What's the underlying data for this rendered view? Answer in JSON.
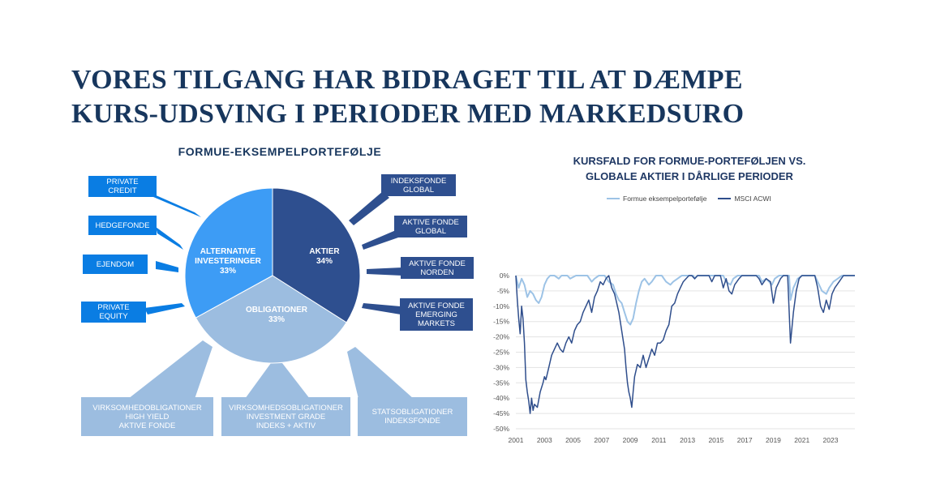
{
  "title": {
    "line1": "VORES TILGANG HAR BIDRAGET TIL AT DÆMPE",
    "line2": "KURS-UDSVING I PERIODER MED MARKEDSURO"
  },
  "pie": {
    "title": "FORMUE-EKSEMPELPORTEFØLJE",
    "segments": [
      {
        "name": "AKTIER",
        "pct": "34%",
        "value": 34,
        "color": "#2e4f8f"
      },
      {
        "name": "OBLIGATIONER",
        "pct": "33%",
        "value": 33,
        "color": "#9cbde0"
      },
      {
        "name": "ALTERNATIVE\nINVESTERINGER",
        "pct": "33%",
        "value": 33,
        "color": "#3d9cf5"
      }
    ],
    "alt_boxes": [
      "PRIVATE\nCREDIT",
      "HEDGEFONDE",
      "EJENDOM",
      "PRIVATE\nEQUITY"
    ],
    "aktier_boxes": [
      "INDEKSFONDE\nGLOBAL",
      "AKTIVE FONDE\nGLOBAL",
      "AKTIVE FONDE\nNORDEN",
      "AKTIVE FONDE\nEMERGING\nMARKETS"
    ],
    "oblig_boxes": [
      "VIRKSOMHEDOBLIGATIONER\nHIGH YIELD\nAKTIVE FONDE",
      "VIRKSOMHEDSOBLIGATIONER\nINVESTMENT GRADE\nINDEKS + AKTIV",
      "STATSOBLIGATIONER\nINDEKSFONDE"
    ]
  },
  "chart_data": {
    "type": "line",
    "title": "KURSFALD FOR FORMUE-PORTEFØLJEN VS.\nGLOBALE AKTIER I DÅRLIGE PERIODER",
    "xlabel": "",
    "ylabel": "",
    "xlim": [
      2001,
      2024.7
    ],
    "ylim": [
      -50,
      0
    ],
    "x_ticks": [
      "2001",
      "2003",
      "2005",
      "2007",
      "2009",
      "2011",
      "2013",
      "2015",
      "2017",
      "2019",
      "2021",
      "2023"
    ],
    "y_ticks": [
      "0%",
      "-5%",
      "-10%",
      "-15%",
      "-20%",
      "-25%",
      "-30%",
      "-35%",
      "-40%",
      "-45%",
      "-50%"
    ],
    "grid": "horizontal",
    "legend_position": "top",
    "series": [
      {
        "name": "Formue eksempelportefølje",
        "color": "#9dc3e6",
        "points": [
          [
            2001.0,
            0
          ],
          [
            2001.2,
            -4
          ],
          [
            2001.4,
            -1
          ],
          [
            2001.6,
            -3
          ],
          [
            2001.8,
            -7
          ],
          [
            2002.0,
            -5
          ],
          [
            2002.2,
            -6
          ],
          [
            2002.4,
            -8
          ],
          [
            2002.6,
            -9
          ],
          [
            2002.8,
            -7
          ],
          [
            2003.0,
            -3
          ],
          [
            2003.2,
            -1
          ],
          [
            2003.4,
            0
          ],
          [
            2003.7,
            0
          ],
          [
            2004.0,
            -1
          ],
          [
            2004.2,
            0
          ],
          [
            2004.6,
            0
          ],
          [
            2004.8,
            -1
          ],
          [
            2005.2,
            0
          ],
          [
            2006.0,
            0
          ],
          [
            2006.3,
            -2
          ],
          [
            2006.5,
            -1
          ],
          [
            2006.8,
            0
          ],
          [
            2007.2,
            0
          ],
          [
            2007.5,
            -2
          ],
          [
            2007.8,
            -3
          ],
          [
            2008.0,
            -6
          ],
          [
            2008.2,
            -8
          ],
          [
            2008.4,
            -9
          ],
          [
            2008.6,
            -12
          ],
          [
            2008.8,
            -15
          ],
          [
            2009.0,
            -16
          ],
          [
            2009.2,
            -14
          ],
          [
            2009.4,
            -9
          ],
          [
            2009.6,
            -5
          ],
          [
            2009.8,
            -2
          ],
          [
            2010.0,
            -1
          ],
          [
            2010.3,
            -3
          ],
          [
            2010.5,
            -2
          ],
          [
            2010.8,
            0
          ],
          [
            2011.2,
            0
          ],
          [
            2011.5,
            -2
          ],
          [
            2011.8,
            -3
          ],
          [
            2012.0,
            -2
          ],
          [
            2012.3,
            -1
          ],
          [
            2012.6,
            0
          ],
          [
            2013.4,
            0
          ],
          [
            2013.5,
            -1
          ],
          [
            2013.7,
            0
          ],
          [
            2015.5,
            0
          ],
          [
            2015.7,
            -2
          ],
          [
            2016.0,
            -3
          ],
          [
            2016.2,
            -1
          ],
          [
            2016.5,
            0
          ],
          [
            2018.0,
            0
          ],
          [
            2018.2,
            -2
          ],
          [
            2018.5,
            -1
          ],
          [
            2018.9,
            -3
          ],
          [
            2019.1,
            -1
          ],
          [
            2019.4,
            0
          ],
          [
            2020.1,
            0
          ],
          [
            2020.2,
            -8
          ],
          [
            2020.4,
            -4
          ],
          [
            2020.7,
            -1
          ],
          [
            2021.0,
            0
          ],
          [
            2021.9,
            0
          ],
          [
            2022.1,
            -2
          ],
          [
            2022.4,
            -5
          ],
          [
            2022.7,
            -6
          ],
          [
            2022.9,
            -4
          ],
          [
            2023.2,
            -2
          ],
          [
            2023.5,
            -1
          ],
          [
            2023.8,
            0
          ],
          [
            2024.7,
            0
          ]
        ]
      },
      {
        "name": "MSCI ACWI",
        "color": "#2f4e8c",
        "points": [
          [
            2001.0,
            0
          ],
          [
            2001.1,
            -8
          ],
          [
            2001.2,
            -14
          ],
          [
            2001.3,
            -19
          ],
          [
            2001.4,
            -10
          ],
          [
            2001.5,
            -14
          ],
          [
            2001.6,
            -22
          ],
          [
            2001.7,
            -34
          ],
          [
            2001.8,
            -38
          ],
          [
            2001.9,
            -41
          ],
          [
            2002.0,
            -45
          ],
          [
            2002.1,
            -40
          ],
          [
            2002.2,
            -44
          ],
          [
            2002.3,
            -42
          ],
          [
            2002.5,
            -43
          ],
          [
            2002.7,
            -38
          ],
          [
            2002.9,
            -35
          ],
          [
            2003.0,
            -33
          ],
          [
            2003.1,
            -34
          ],
          [
            2003.3,
            -30
          ],
          [
            2003.5,
            -26
          ],
          [
            2003.7,
            -24
          ],
          [
            2003.9,
            -22
          ],
          [
            2004.1,
            -24
          ],
          [
            2004.3,
            -25
          ],
          [
            2004.5,
            -22
          ],
          [
            2004.7,
            -20
          ],
          [
            2004.9,
            -22
          ],
          [
            2005.1,
            -18
          ],
          [
            2005.3,
            -16
          ],
          [
            2005.5,
            -15
          ],
          [
            2005.7,
            -12
          ],
          [
            2005.9,
            -10
          ],
          [
            2006.1,
            -8
          ],
          [
            2006.3,
            -12
          ],
          [
            2006.5,
            -7
          ],
          [
            2006.7,
            -5
          ],
          [
            2006.9,
            -2
          ],
          [
            2007.1,
            -3
          ],
          [
            2007.3,
            -1
          ],
          [
            2007.5,
            0
          ],
          [
            2007.7,
            -4
          ],
          [
            2007.9,
            -6
          ],
          [
            2008.0,
            -8
          ],
          [
            2008.2,
            -12
          ],
          [
            2008.4,
            -18
          ],
          [
            2008.6,
            -24
          ],
          [
            2008.7,
            -30
          ],
          [
            2008.8,
            -35
          ],
          [
            2008.9,
            -38
          ],
          [
            2009.0,
            -40
          ],
          [
            2009.1,
            -43
          ],
          [
            2009.2,
            -38
          ],
          [
            2009.3,
            -33
          ],
          [
            2009.5,
            -29
          ],
          [
            2009.7,
            -30
          ],
          [
            2009.9,
            -26
          ],
          [
            2010.1,
            -30
          ],
          [
            2010.3,
            -27
          ],
          [
            2010.5,
            -24
          ],
          [
            2010.7,
            -26
          ],
          [
            2010.9,
            -22
          ],
          [
            2011.1,
            -22
          ],
          [
            2011.3,
            -21
          ],
          [
            2011.5,
            -18
          ],
          [
            2011.7,
            -16
          ],
          [
            2011.9,
            -10
          ],
          [
            2012.1,
            -9
          ],
          [
            2012.3,
            -6
          ],
          [
            2012.5,
            -4
          ],
          [
            2012.7,
            -2
          ],
          [
            2012.9,
            -1
          ],
          [
            2013.1,
            0
          ],
          [
            2013.3,
            0
          ],
          [
            2013.5,
            -1
          ],
          [
            2013.7,
            0
          ],
          [
            2014.5,
            0
          ],
          [
            2014.7,
            -2
          ],
          [
            2014.9,
            0
          ],
          [
            2015.3,
            0
          ],
          [
            2015.5,
            -4
          ],
          [
            2015.7,
            -1
          ],
          [
            2015.9,
            -5
          ],
          [
            2016.1,
            -6
          ],
          [
            2016.3,
            -3
          ],
          [
            2016.6,
            -1
          ],
          [
            2016.8,
            0
          ],
          [
            2017.8,
            0
          ],
          [
            2018.0,
            -1
          ],
          [
            2018.2,
            -3
          ],
          [
            2018.5,
            -1
          ],
          [
            2018.8,
            -2
          ],
          [
            2019.0,
            -9
          ],
          [
            2019.2,
            -4
          ],
          [
            2019.5,
            -1
          ],
          [
            2019.7,
            0
          ],
          [
            2020.0,
            0
          ],
          [
            2020.2,
            -22
          ],
          [
            2020.4,
            -12
          ],
          [
            2020.6,
            -5
          ],
          [
            2020.8,
            -1
          ],
          [
            2021.0,
            0
          ],
          [
            2021.9,
            0
          ],
          [
            2022.1,
            -4
          ],
          [
            2022.3,
            -10
          ],
          [
            2022.5,
            -12
          ],
          [
            2022.7,
            -8
          ],
          [
            2022.9,
            -11
          ],
          [
            2023.1,
            -6
          ],
          [
            2023.3,
            -4
          ],
          [
            2023.6,
            -2
          ],
          [
            2023.9,
            0
          ],
          [
            2024.7,
            0
          ]
        ]
      }
    ]
  }
}
